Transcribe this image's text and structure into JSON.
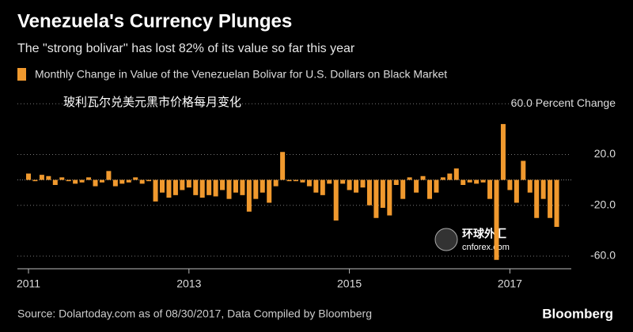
{
  "chart_data": {
    "type": "bar",
    "title": "Venezuela's Currency Plunges",
    "subtitle": "The \"strong bolivar'' has lost 82% of its value so far this year",
    "annotation": "玻利瓦尔兑美元黑市价格每月变化",
    "watermark": [
      "环球外汇",
      "cnforex.com"
    ],
    "source": "Source: Dolartoday.com as of 08/30/2017, Data Compiled by Bloomberg",
    "brand": "Bloomberg",
    "categories": [
      "2011",
      null,
      null,
      null,
      null,
      null,
      null,
      null,
      null,
      null,
      null,
      null,
      null,
      null,
      null,
      null,
      null,
      null,
      null,
      null,
      null,
      null,
      null,
      null,
      "2013",
      null,
      null,
      null,
      null,
      null,
      null,
      null,
      null,
      null,
      null,
      null,
      null,
      null,
      null,
      null,
      null,
      null,
      null,
      null,
      null,
      null,
      null,
      null,
      "2015",
      null,
      null,
      null,
      null,
      null,
      null,
      null,
      null,
      null,
      null,
      null,
      null,
      null,
      null,
      null,
      null,
      null,
      null,
      null,
      null,
      null,
      null,
      null,
      "2017",
      null,
      null,
      null,
      null,
      null,
      null,
      null
    ],
    "series": [
      {
        "name": "Monthly Change in Value of the Venezuelan Bolivar for U.S. Dollars on Black Market",
        "color": "#f0992e",
        "values": [
          5,
          -1,
          4,
          3,
          -4,
          2,
          -1,
          -3,
          -2,
          2,
          -5,
          -2,
          7,
          -5,
          -3,
          -2,
          2,
          -3,
          -1,
          -17,
          -10,
          -14,
          -12,
          -8,
          -6,
          -12,
          -14,
          -12,
          -13,
          -8,
          -15,
          -10,
          -12,
          -25,
          -15,
          -10,
          -18,
          -5,
          22,
          -1,
          -1,
          -2,
          -5,
          -10,
          -12,
          -3,
          -32,
          -3,
          -8,
          -10,
          -6,
          -20,
          -30,
          -22,
          -28,
          -4,
          -15,
          2,
          -10,
          3,
          -15,
          -10,
          2,
          5,
          9,
          -4,
          -2,
          -3,
          -2,
          -15,
          -63,
          44,
          -8,
          -18,
          15,
          -10,
          -30,
          -15,
          -30,
          -37
        ]
      }
    ],
    "ylim": [
      -70,
      62
    ],
    "yticks": [
      {
        "value": 60,
        "label": "60.0 Percent Change"
      },
      {
        "value": 20,
        "label": "20.0"
      },
      {
        "value": -20,
        "label": "-20.0"
      },
      {
        "value": -60,
        "label": "-60.0"
      }
    ],
    "grid": true
  }
}
